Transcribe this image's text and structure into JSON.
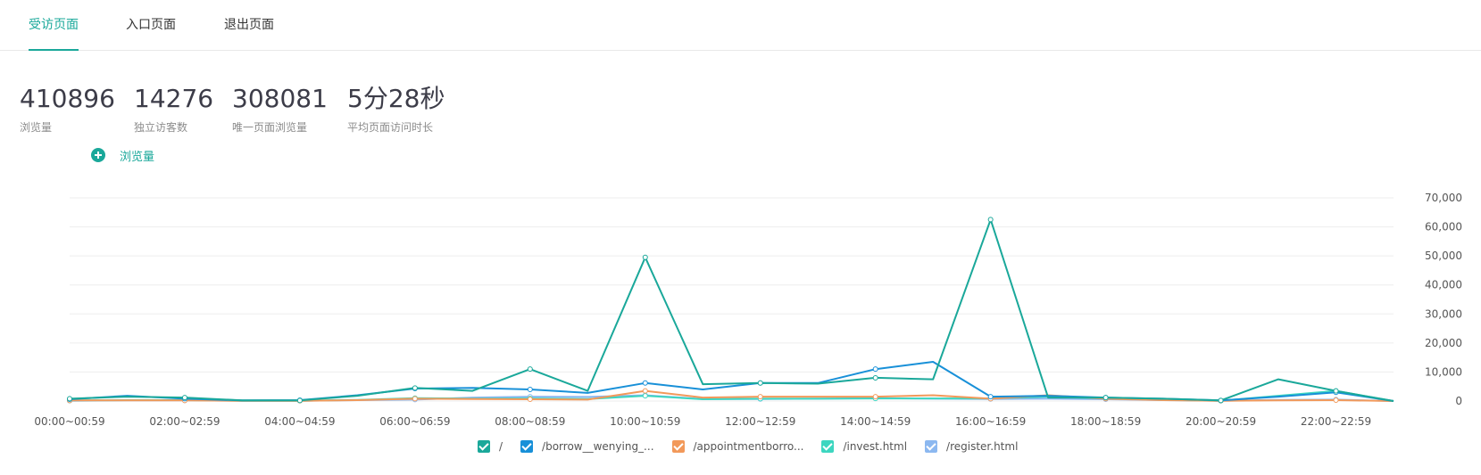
{
  "tabs": [
    {
      "label": "受访页面",
      "active": true
    },
    {
      "label": "入口页面",
      "active": false
    },
    {
      "label": "退出页面",
      "active": false
    }
  ],
  "stats": [
    {
      "value": "410896",
      "label": "浏览量"
    },
    {
      "value": "14276",
      "label": "独立访客数"
    },
    {
      "value": "308081",
      "label": "唯一页面浏览量"
    },
    {
      "value": "5分28秒",
      "label": "平均页面访问时长"
    }
  ],
  "add_metric": {
    "label": "浏览量",
    "icon": "plus-circle-icon"
  },
  "colors": {
    "accent": "#1aa89a"
  },
  "chart_data": {
    "type": "line",
    "ylim": [
      0,
      70000
    ],
    "yticks": [
      "70,000",
      "60,000",
      "50,000",
      "40,000",
      "30,000",
      "20,000",
      "10,000",
      "0"
    ],
    "ytick_values": [
      70000,
      60000,
      50000,
      40000,
      30000,
      20000,
      10000,
      0
    ],
    "categories": [
      "00:00-00:59",
      "01:00-01:59",
      "02:00-02:59",
      "03:00-03:59",
      "04:00-04:59",
      "05:00-05:59",
      "06:00-06:59",
      "07:00-07:59",
      "08:00-08:59",
      "09:00-09:59",
      "10:00-10:59",
      "11:00-11:59",
      "12:00-12:59",
      "13:00-13:59",
      "14:00-14:59",
      "15:00-15:59",
      "16:00-16:59",
      "17:00-17:59",
      "18:00-18:59",
      "19:00-19:59",
      "20:00-20:59",
      "21:00-21:59",
      "22:00-22:59",
      "23:00-23:59"
    ],
    "xlabels": [
      "00:00~00:59",
      "02:00~02:59",
      "04:00~04:59",
      "06:00~06:59",
      "08:00~08:59",
      "10:00~10:59",
      "12:00~12:59",
      "14:00~14:59",
      "16:00~16:59",
      "18:00~18:59",
      "20:00~20:59",
      "22:00~22:59"
    ],
    "series": [
      {
        "name": "/",
        "color": "#1aa89a",
        "values": [
          800,
          1500,
          1200,
          200,
          200,
          1800,
          4500,
          3500,
          11000,
          3500,
          49500,
          5800,
          6200,
          6000,
          8000,
          7500,
          62500,
          1200,
          1200,
          800,
          200,
          7500,
          3500,
          0
        ]
      },
      {
        "name": "/borrow__wenying_...",
        "color": "#1890d8",
        "values": [
          600,
          1800,
          800,
          200,
          300,
          2000,
          4300,
          4500,
          4000,
          2800,
          6200,
          4000,
          6200,
          6200,
          11000,
          13500,
          1500,
          1800,
          1200,
          800,
          200,
          1500,
          3000,
          0
        ]
      },
      {
        "name": "/appointmentborro...",
        "color": "#f2995a",
        "values": [
          200,
          200,
          200,
          100,
          100,
          300,
          800,
          700,
          600,
          500,
          3500,
          1200,
          1500,
          1500,
          1500,
          2000,
          800,
          2000,
          800,
          300,
          100,
          200,
          300,
          0
        ]
      },
      {
        "name": "/invest.html",
        "color": "#3dd6c0",
        "values": [
          200,
          300,
          300,
          100,
          100,
          400,
          1000,
          800,
          900,
          700,
          1800,
          600,
          800,
          800,
          900,
          900,
          900,
          1500,
          900,
          400,
          100,
          1800,
          3500,
          0
        ]
      },
      {
        "name": "/register.html",
        "color": "#8cb8f0",
        "values": [
          100,
          200,
          200,
          100,
          100,
          300,
          500,
          1200,
          1500,
          1400,
          2000,
          700,
          700,
          800,
          1000,
          800,
          700,
          800,
          600,
          300,
          100,
          400,
          500,
          0
        ]
      }
    ]
  }
}
